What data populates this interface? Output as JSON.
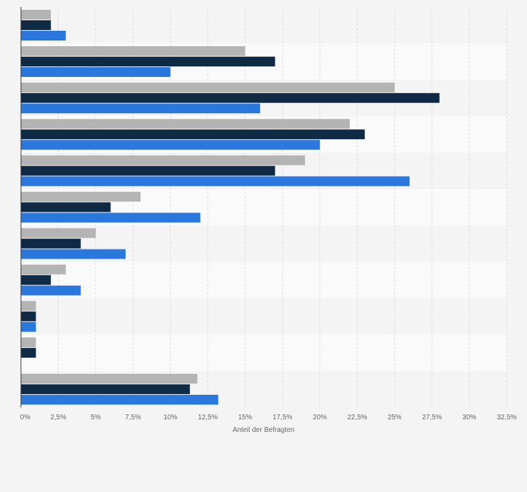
{
  "chart_data": {
    "type": "bar",
    "orientation": "horizontal",
    "title": "",
    "xlabel": "Anteil der Befragten",
    "ylabel": "",
    "xlim": [
      0,
      32.5
    ],
    "tick_values": [
      0,
      2.5,
      5,
      7.5,
      10,
      12.5,
      15,
      17.5,
      20,
      22.5,
      25,
      27.5,
      30,
      32.5
    ],
    "tick_labels": [
      "0%",
      "2,5%",
      "5%",
      "7,5%",
      "10%",
      "12,5%",
      "15%",
      "17,5%",
      "20%",
      "22,5%",
      "25%",
      "27,5%",
      "30%",
      "32,5%"
    ],
    "categories": [
      "",
      "",
      "",
      "",
      "",
      "",
      "",
      "",
      "",
      "",
      ""
    ],
    "grid": true,
    "legend": "none",
    "series": [
      {
        "name": "",
        "color": "#b4b4b4",
        "values": [
          2,
          15,
          25,
          22,
          19,
          8,
          5,
          3,
          1,
          1,
          11.8
        ]
      },
      {
        "name": "",
        "color": "#0f2a44",
        "values": [
          2,
          17,
          28,
          23,
          17,
          6,
          4,
          2,
          1,
          1,
          11.3
        ]
      },
      {
        "name": "",
        "color": "#2a78de",
        "values": [
          3,
          10,
          16,
          20,
          26,
          12,
          7,
          4,
          1,
          null,
          13.2
        ]
      }
    ]
  }
}
